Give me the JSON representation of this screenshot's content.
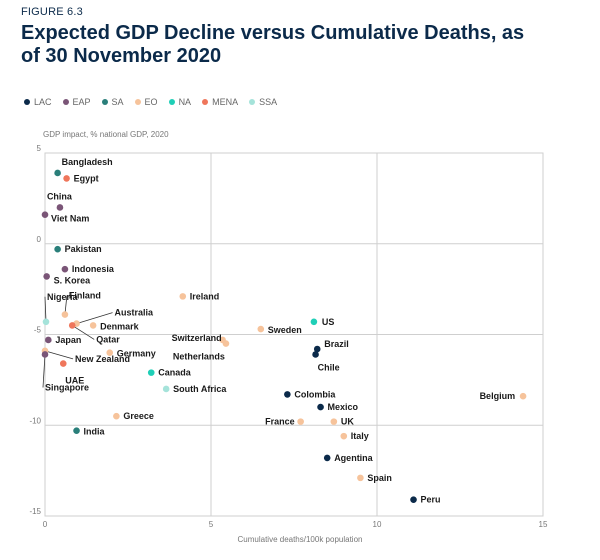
{
  "figure_label": "FIGURE 6.3",
  "title": "Expected GDP Decline versus Cumulative Deaths, as of 30 November 2020",
  "colors": {
    "LAC": "#0b2a4a",
    "EAP": "#7a5577",
    "SA": "#2a7f7a",
    "EO": "#f6c39b",
    "NA": "#1fcfb7",
    "MENA": "#ef765b",
    "SSA": "#a5e3da"
  },
  "chart_data": {
    "type": "scatter",
    "ylabel": "GDP impact, % national GDP, 2020",
    "xlabel": "Cumulative deaths/100k population",
    "xlim": [
      0,
      15
    ],
    "ylim": [
      -15,
      5
    ],
    "xticks": [
      "0",
      "5",
      "10",
      "15"
    ],
    "yticks": [
      "5",
      "0",
      "-5",
      "-10",
      "-15"
    ],
    "grid": true,
    "legend": [
      {
        "key": "LAC",
        "label": "LAC"
      },
      {
        "key": "EAP",
        "label": "EAP"
      },
      {
        "key": "SA",
        "label": "SA"
      },
      {
        "key": "EO",
        "label": "EO"
      },
      {
        "key": "NA",
        "label": "NA"
      },
      {
        "key": "MENA",
        "label": "MENA"
      },
      {
        "key": "SSA",
        "label": "SSA"
      }
    ],
    "points": [
      {
        "label": "Bangladesh",
        "x": 0.38,
        "y": 3.9,
        "region": "SA"
      },
      {
        "label": "Egypt",
        "x": 0.65,
        "y": 3.6,
        "region": "MENA"
      },
      {
        "label": "China",
        "x": 0.45,
        "y": 2.0,
        "region": "EAP"
      },
      {
        "label": "Viet Nam",
        "x": 0.0,
        "y": 1.6,
        "region": "EAP"
      },
      {
        "label": "Pakistan",
        "x": 0.38,
        "y": -0.3,
        "region": "SA"
      },
      {
        "label": "Indonesia",
        "x": 0.6,
        "y": -1.4,
        "region": "EAP"
      },
      {
        "label": "S. Korea",
        "x": 0.05,
        "y": -1.8,
        "region": "EAP"
      },
      {
        "label": "Nigeria",
        "x": 0.03,
        "y": -4.3,
        "region": "SSA"
      },
      {
        "label": "Finland",
        "x": 0.6,
        "y": -3.9,
        "region": "EO"
      },
      {
        "label": "Australia",
        "x": 0.95,
        "y": -4.4,
        "region": "EO"
      },
      {
        "label": "Denmark",
        "x": 1.45,
        "y": -4.5,
        "region": "EO"
      },
      {
        "label": "Qatar",
        "x": 0.82,
        "y": -4.5,
        "region": "MENA"
      },
      {
        "label": "Japan",
        "x": 0.1,
        "y": -5.3,
        "region": "EAP"
      },
      {
        "label": "Germany",
        "x": 1.95,
        "y": -6.0,
        "region": "EO"
      },
      {
        "label": "New Zealand",
        "x": 0.0,
        "y": -5.9,
        "region": "EO"
      },
      {
        "label": "UAE",
        "x": 0.55,
        "y": -6.6,
        "region": "MENA"
      },
      {
        "label": "Singapore",
        "x": 0.0,
        "y": -6.1,
        "region": "EAP"
      },
      {
        "label": "Ireland",
        "x": 4.15,
        "y": -2.9,
        "region": "EO"
      },
      {
        "label": "Switzerland",
        "x": 5.35,
        "y": -5.3,
        "region": "EO"
      },
      {
        "label": "Netherlands",
        "x": 5.45,
        "y": -5.5,
        "region": "EO"
      },
      {
        "label": "Sweden",
        "x": 6.5,
        "y": -4.7,
        "region": "EO"
      },
      {
        "label": "US",
        "x": 8.1,
        "y": -4.3,
        "region": "NA"
      },
      {
        "label": "Brazil",
        "x": 8.2,
        "y": -5.8,
        "region": "LAC"
      },
      {
        "label": "Chile",
        "x": 8.15,
        "y": -6.1,
        "region": "LAC"
      },
      {
        "label": "Canada",
        "x": 3.2,
        "y": -7.1,
        "region": "NA"
      },
      {
        "label": "South Africa",
        "x": 3.65,
        "y": -8.0,
        "region": "SSA"
      },
      {
        "label": "Colombia",
        "x": 7.3,
        "y": -8.3,
        "region": "LAC"
      },
      {
        "label": "Mexico",
        "x": 8.3,
        "y": -9.0,
        "region": "LAC"
      },
      {
        "label": "France",
        "x": 7.7,
        "y": -9.8,
        "region": "EO"
      },
      {
        "label": "UK",
        "x": 8.7,
        "y": -9.8,
        "region": "EO"
      },
      {
        "label": "Italy",
        "x": 9.0,
        "y": -10.6,
        "region": "EO"
      },
      {
        "label": "Greece",
        "x": 2.15,
        "y": -9.5,
        "region": "EO"
      },
      {
        "label": "India",
        "x": 0.95,
        "y": -10.3,
        "region": "SA"
      },
      {
        "label": "Belgium",
        "x": 14.4,
        "y": -8.4,
        "region": "EO"
      },
      {
        "label": "Agentina",
        "x": 8.5,
        "y": -11.8,
        "region": "LAC"
      },
      {
        "label": "Spain",
        "x": 9.5,
        "y": -12.9,
        "region": "EO"
      },
      {
        "label": "Peru",
        "x": 11.1,
        "y": -14.1,
        "region": "LAC"
      }
    ]
  }
}
